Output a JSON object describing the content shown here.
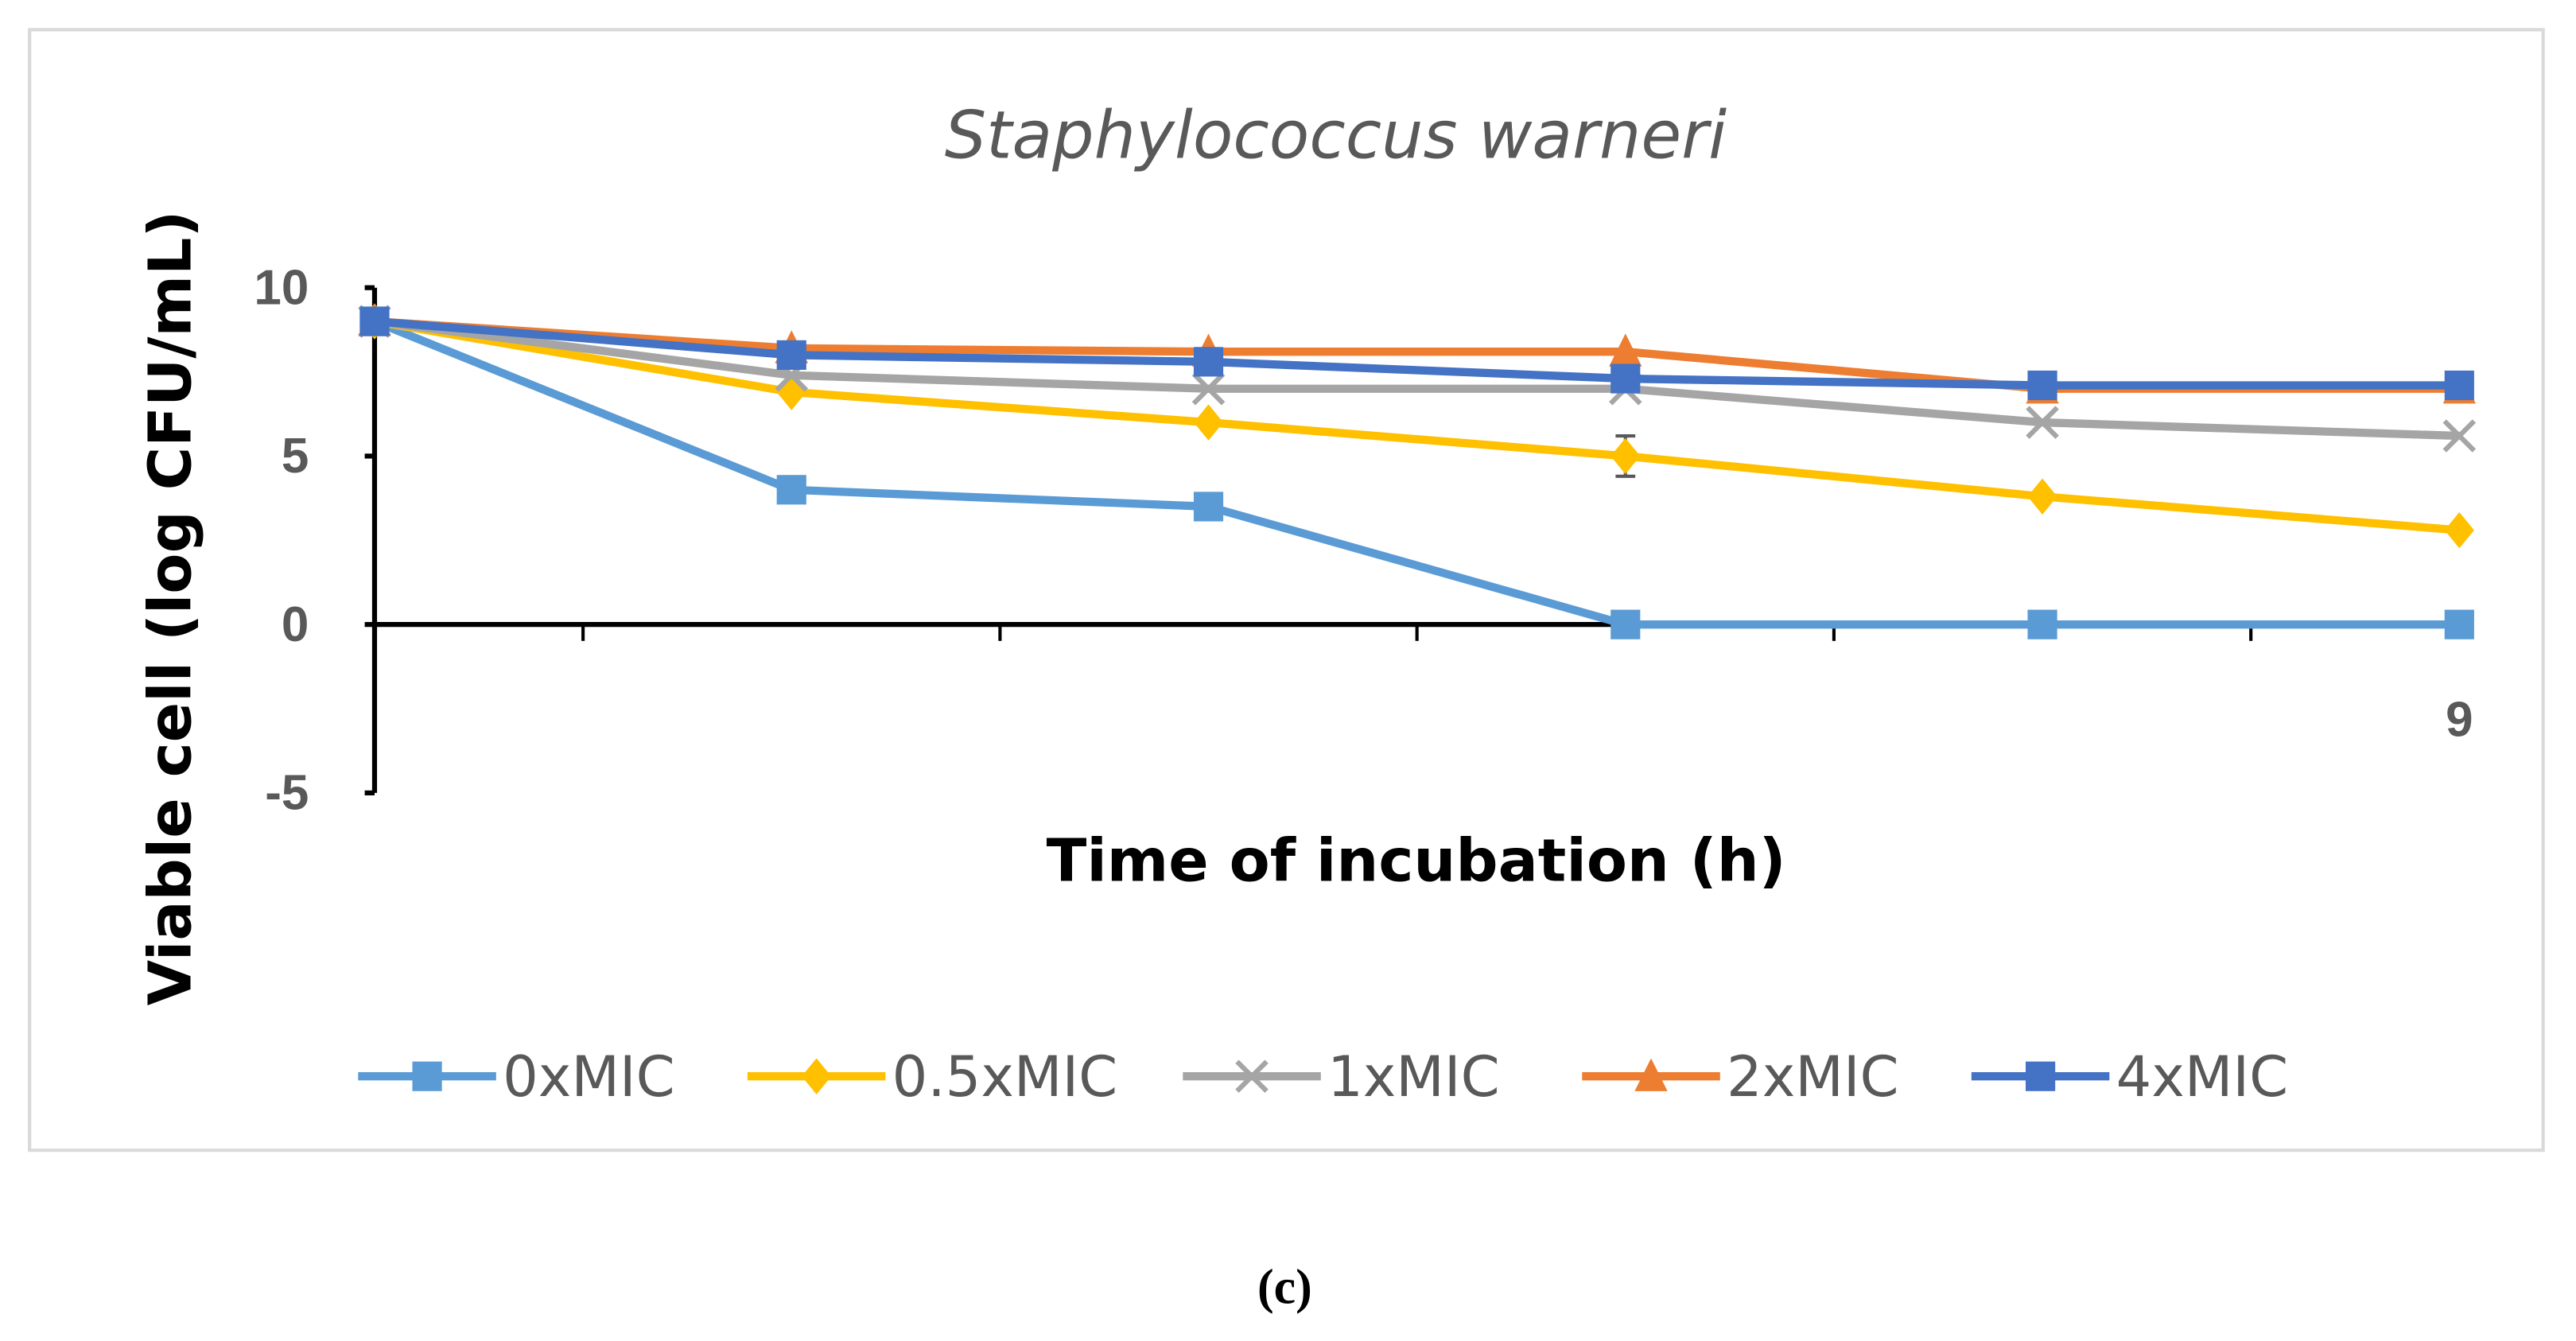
{
  "chart_data": {
    "type": "line",
    "title": "Staphylococcus warneri",
    "xlabel": "Time of incubation (h)",
    "ylabel": "Viable cell (log CFU/mL)",
    "x_tick_labels": [
      "",
      "",
      "",
      "",
      "",
      "9"
    ],
    "y_ticks": [
      10,
      5,
      0,
      -5
    ],
    "y_tick_labels": [
      "10",
      "5",
      "0",
      "-5"
    ],
    "ylim": [
      -5,
      10
    ],
    "grid": false,
    "legend_position": "bottom",
    "series": [
      {
        "name": "0xMIC",
        "color": "#5B9BD5",
        "marker": "square",
        "values": [
          9,
          4,
          3.5,
          0,
          0,
          0
        ]
      },
      {
        "name": "0.5xMIC",
        "color": "#FFC000",
        "marker": "diamond",
        "values": [
          9,
          6.9,
          6,
          5,
          3.8,
          2.8
        ]
      },
      {
        "name": "1xMIC",
        "color": "#A5A5A5",
        "marker": "x",
        "values": [
          9,
          7.4,
          7,
          7,
          6,
          5.6
        ]
      },
      {
        "name": "2xMIC",
        "color": "#ED7D31",
        "marker": "triangle",
        "values": [
          9,
          8.2,
          8.1,
          8.1,
          7,
          7
        ]
      },
      {
        "name": "4xMIC",
        "color": "#4472C4",
        "marker": "square",
        "values": [
          9,
          8,
          7.8,
          7.3,
          7.1,
          7.1
        ]
      }
    ]
  },
  "caption": "(c)"
}
